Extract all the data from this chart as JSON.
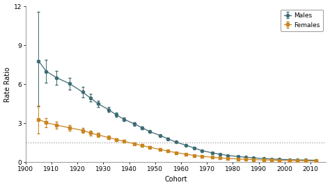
{
  "cohort_years": [
    1905,
    1908,
    1912,
    1917,
    1922,
    1925,
    1928,
    1932,
    1935,
    1938,
    1942,
    1945,
    1948,
    1952,
    1955,
    1958,
    1962,
    1965,
    1968,
    1972,
    1975,
    1978,
    1982,
    1985,
    1988,
    1992,
    1995,
    1998,
    2002,
    2005,
    2008,
    2012
  ],
  "males_rr": [
    7.8,
    7.0,
    6.5,
    6.05,
    5.4,
    4.95,
    4.5,
    4.05,
    3.65,
    3.3,
    2.95,
    2.65,
    2.35,
    2.05,
    1.8,
    1.55,
    1.3,
    1.1,
    0.9,
    0.72,
    0.62,
    0.52,
    0.44,
    0.38,
    0.33,
    0.28,
    0.25,
    0.22,
    0.2,
    0.18,
    0.17,
    0.15
  ],
  "males_err_lo": [
    3.5,
    0.9,
    0.55,
    0.45,
    0.4,
    0.3,
    0.25,
    0.2,
    0.18,
    0.15,
    0.13,
    0.11,
    0.1,
    0.08,
    0.07,
    0.06,
    0.05,
    0.05,
    0.04,
    0.04,
    0.03,
    0.03,
    0.03,
    0.02,
    0.02,
    0.02,
    0.02,
    0.02,
    0.02,
    0.02,
    0.02,
    0.02
  ],
  "males_err_hi": [
    3.8,
    0.9,
    0.55,
    0.45,
    0.4,
    0.3,
    0.25,
    0.2,
    0.18,
    0.15,
    0.13,
    0.11,
    0.1,
    0.08,
    0.07,
    0.06,
    0.05,
    0.05,
    0.04,
    0.04,
    0.03,
    0.03,
    0.03,
    0.02,
    0.02,
    0.02,
    0.02,
    0.02,
    0.02,
    0.02,
    0.02,
    0.02
  ],
  "females_rr": [
    3.3,
    3.05,
    2.85,
    2.65,
    2.45,
    2.25,
    2.1,
    1.9,
    1.75,
    1.6,
    1.42,
    1.28,
    1.15,
    0.98,
    0.85,
    0.74,
    0.62,
    0.52,
    0.45,
    0.38,
    0.33,
    0.29,
    0.25,
    0.22,
    0.2,
    0.17,
    0.16,
    0.14,
    0.13,
    0.12,
    0.11,
    0.1
  ],
  "females_err_lo": [
    1.1,
    0.35,
    0.28,
    0.22,
    0.2,
    0.18,
    0.15,
    0.13,
    0.11,
    0.1,
    0.09,
    0.08,
    0.07,
    0.06,
    0.05,
    0.05,
    0.04,
    0.04,
    0.03,
    0.03,
    0.03,
    0.02,
    0.02,
    0.02,
    0.02,
    0.02,
    0.02,
    0.02,
    0.02,
    0.02,
    0.02,
    0.02
  ],
  "females_err_hi": [
    1.05,
    0.35,
    0.28,
    0.22,
    0.2,
    0.18,
    0.15,
    0.13,
    0.11,
    0.1,
    0.09,
    0.08,
    0.07,
    0.06,
    0.05,
    0.05,
    0.04,
    0.04,
    0.03,
    0.03,
    0.03,
    0.02,
    0.02,
    0.02,
    0.02,
    0.02,
    0.02,
    0.02,
    0.02,
    0.02,
    0.02,
    0.02
  ],
  "males_color": "#3d6b72",
  "females_color": "#c88520",
  "hline_y": 1.5,
  "hline_color": "#999999",
  "xlim": [
    1900,
    2016
  ],
  "ylim": [
    0,
    12
  ],
  "yticks": [
    0,
    3,
    6,
    9,
    12
  ],
  "xticks": [
    1900,
    1910,
    1920,
    1930,
    1940,
    1950,
    1960,
    1970,
    1980,
    1990,
    2000,
    2010
  ],
  "xlabel": "Cohort",
  "ylabel": "Rate Ratio",
  "legend_labels": [
    "Males",
    "Females"
  ],
  "bg_color": "#ffffff",
  "marker_size": 3.0,
  "linewidth": 0.9,
  "capsize": 1.5,
  "elinewidth": 0.7
}
